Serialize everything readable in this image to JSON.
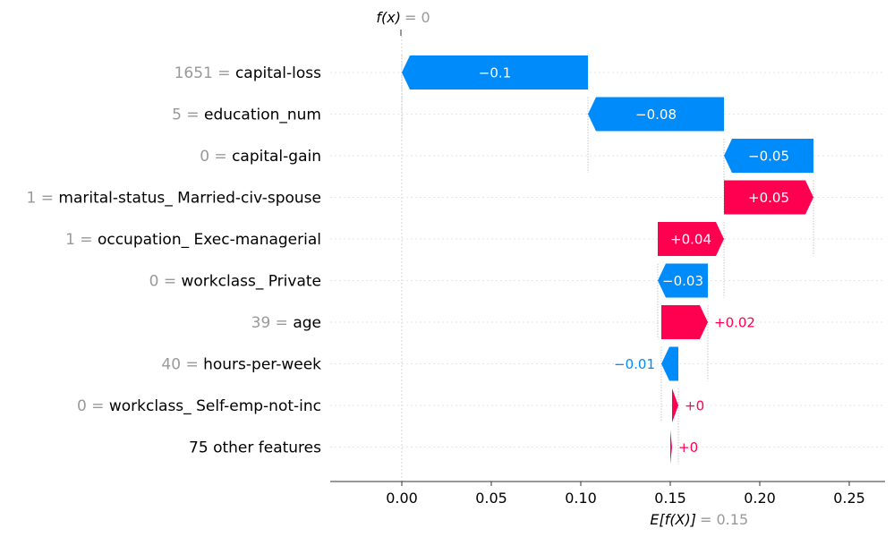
{
  "chart_data": {
    "type": "waterfall",
    "top_annotation": {
      "label": "f(x)",
      "value": "= 0"
    },
    "bottom_annotation": {
      "label": "E[f(X)]",
      "value": "= 0.15"
    },
    "xlim": [
      -0.04,
      0.27
    ],
    "x_ticks": [
      0.0,
      0.05,
      0.1,
      0.15,
      0.2,
      0.25
    ],
    "x_tick_labels": [
      "0.00",
      "0.05",
      "0.10",
      "0.15",
      "0.20",
      "0.25"
    ],
    "colors": {
      "negative": "#008bfb",
      "positive": "#ff0051",
      "value_text": "#999999"
    },
    "features": [
      {
        "value": "1651",
        "name": "capital-loss",
        "start": 0.104,
        "end": 0.0,
        "label": "−0.1"
      },
      {
        "value": "5",
        "name": "education_num",
        "start": 0.18,
        "end": 0.104,
        "label": "−0.08"
      },
      {
        "value": "0",
        "name": "capital-gain",
        "start": 0.23,
        "end": 0.18,
        "label": "−0.05"
      },
      {
        "value": "1",
        "name": "marital-status_ Married-civ-spouse",
        "start": 0.18,
        "end": 0.23,
        "label": "+0.05"
      },
      {
        "value": "1",
        "name": "occupation_ Exec-managerial",
        "start": 0.143,
        "end": 0.18,
        "label": "+0.04"
      },
      {
        "value": "0",
        "name": "workclass_ Private",
        "start": 0.171,
        "end": 0.143,
        "label": "−0.03"
      },
      {
        "value": "39",
        "name": "age",
        "start": 0.145,
        "end": 0.171,
        "label": "+0.02"
      },
      {
        "value": "40",
        "name": "hours-per-week",
        "start": 0.1545,
        "end": 0.145,
        "label": "−0.01"
      },
      {
        "value": "0",
        "name": "workclass_ Self-emp-not-inc",
        "start": 0.151,
        "end": 0.1545,
        "label": "+0"
      },
      {
        "value": "",
        "name": "75 other features",
        "start": 0.15,
        "end": 0.151,
        "label": "+0"
      }
    ]
  }
}
